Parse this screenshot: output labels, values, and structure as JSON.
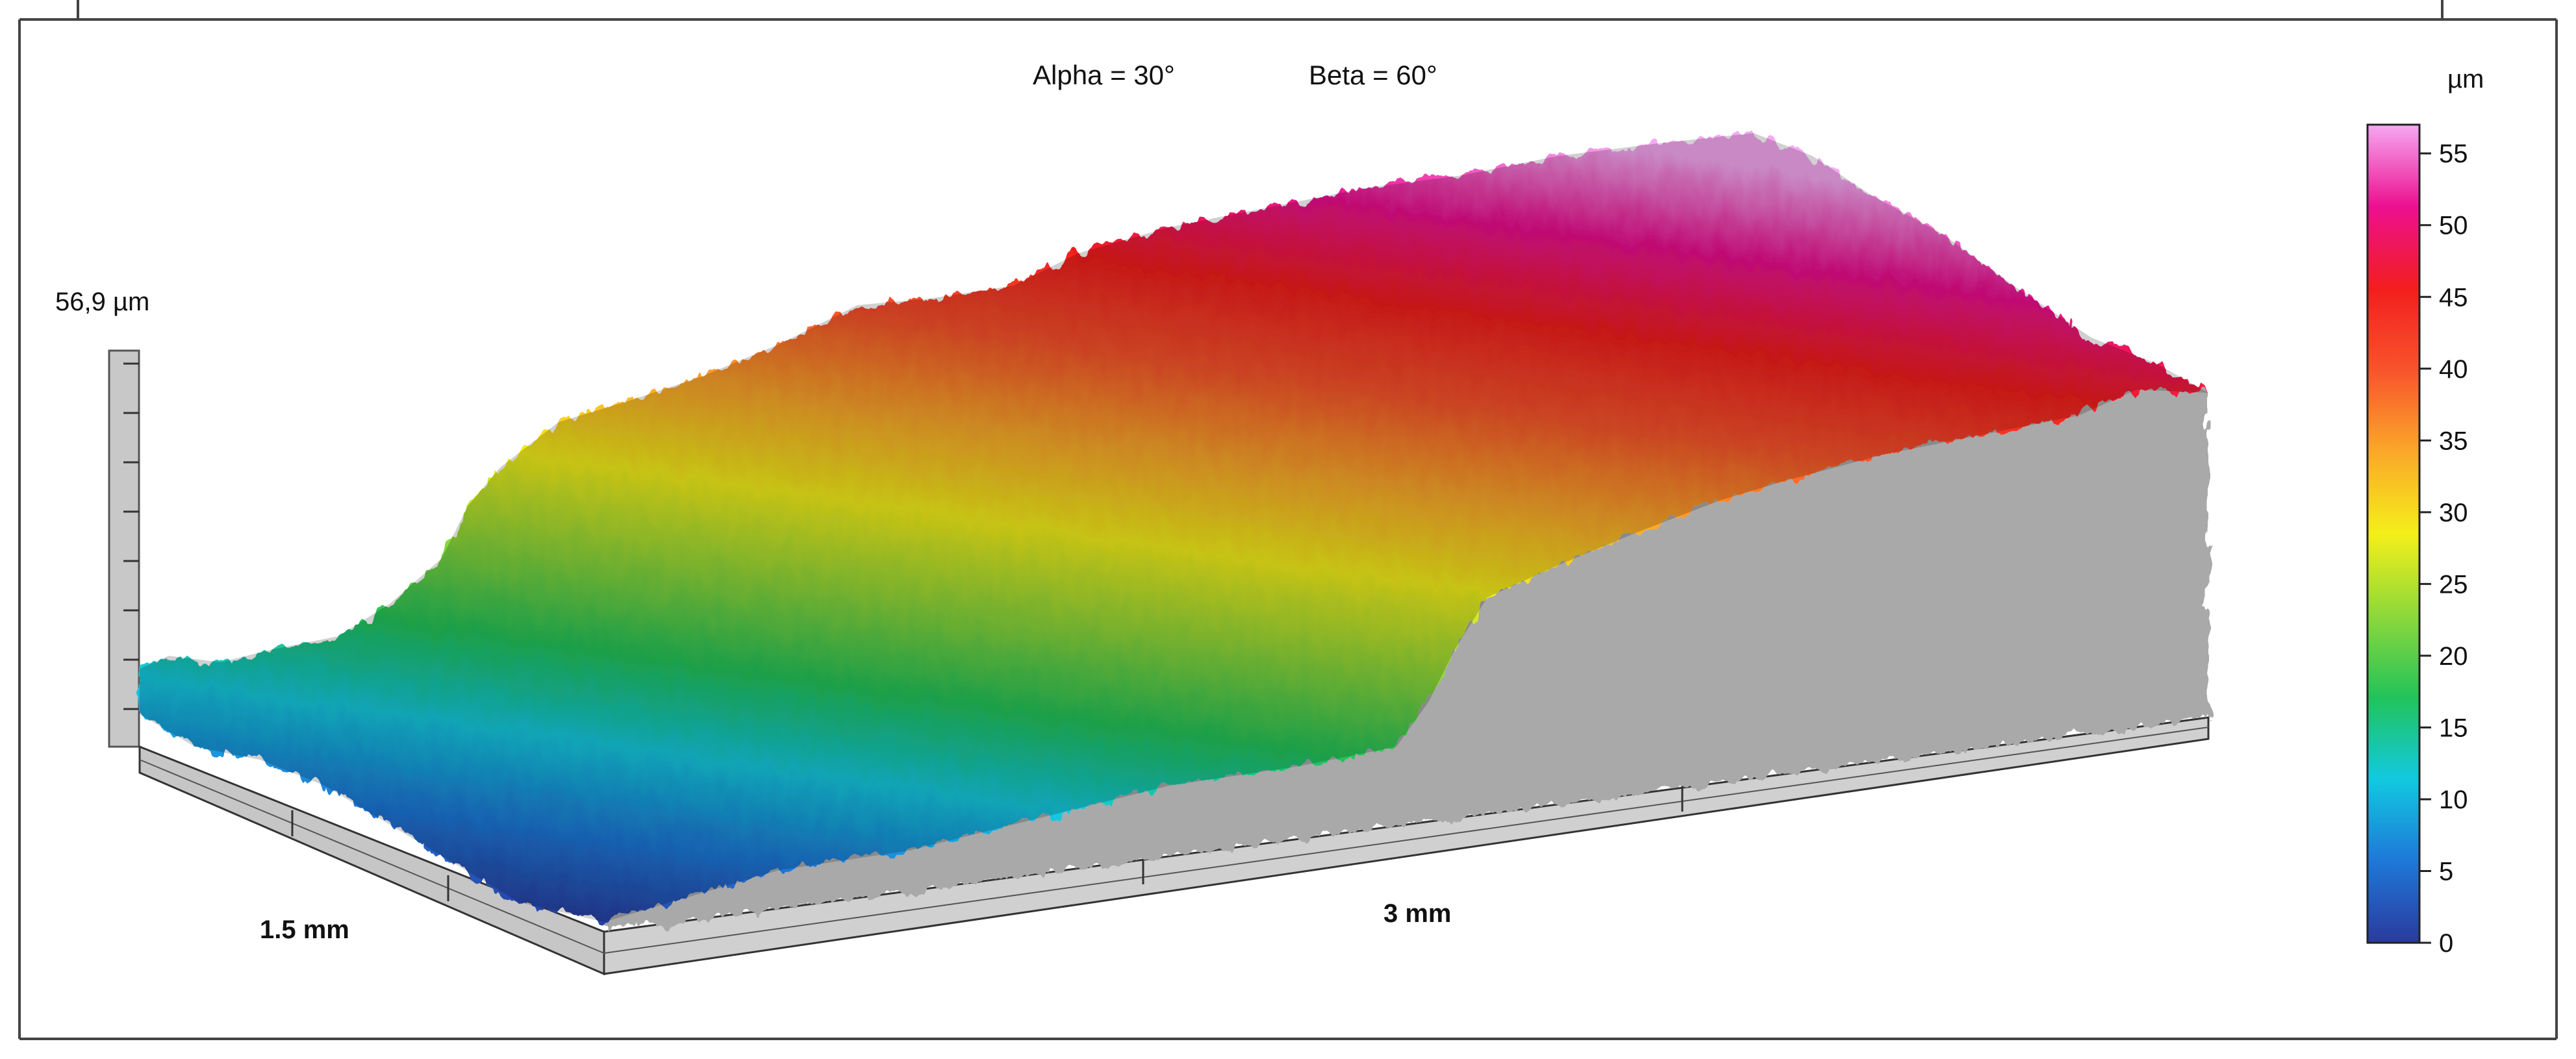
{
  "view": {
    "alpha_label": "Alpha = 30°",
    "beta_label": "Beta = 60°"
  },
  "height_axis": {
    "max_label": "56,9 µm"
  },
  "x_axis_label": "3 mm",
  "y_axis_label": "1.5 mm",
  "colorbar": {
    "unit": "µm",
    "range": [
      0,
      57
    ],
    "ticks": [
      "0",
      "5",
      "10",
      "15",
      "20",
      "25",
      "30",
      "35",
      "40",
      "45",
      "50",
      "55"
    ],
    "palette": [
      "#2a3a9e",
      "#1e78d8",
      "#12c9e0",
      "#22c35a",
      "#8ed83a",
      "#f4ef1a",
      "#fba82a",
      "#f8542c",
      "#f21e1e",
      "#ec1090",
      "#f6a8f2"
    ]
  },
  "chart_data": {
    "type": "surface",
    "title": "",
    "view_angles": {
      "alpha": "30°",
      "beta": "60°"
    },
    "x_extent": "3 mm",
    "y_extent": "1.5 mm",
    "z_max": "56,9 µm",
    "z_unit": "µm",
    "z_range": [
      0,
      57
    ],
    "surface_profile": {
      "x_fraction": [
        0.0,
        0.08,
        0.17,
        0.25,
        0.33,
        0.42,
        0.5,
        0.58,
        0.67,
        0.75,
        0.83,
        0.92,
        1.0
      ],
      "height_um": [
        4,
        6,
        9,
        14,
        20,
        27,
        34,
        40,
        45,
        49,
        53,
        55,
        48
      ]
    }
  }
}
